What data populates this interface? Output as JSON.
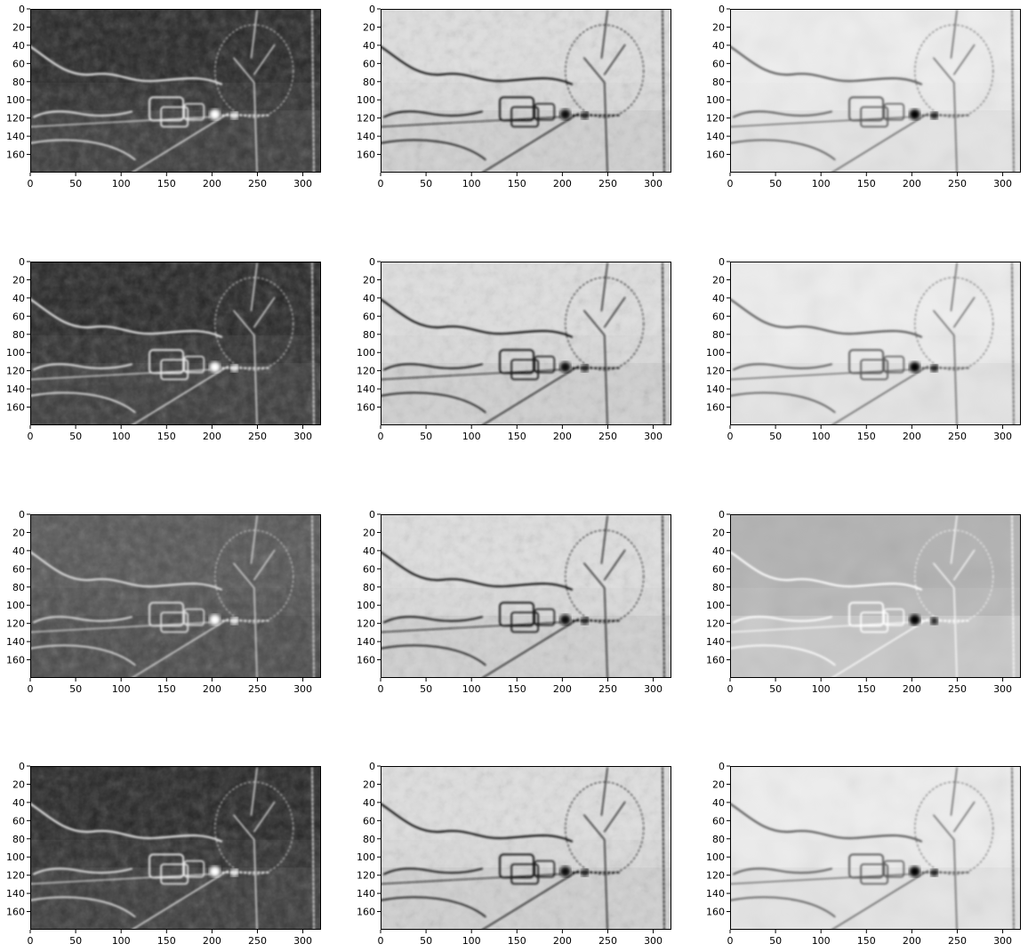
{
  "figure": {
    "rows": 4,
    "cols": 3,
    "colormap": "gray",
    "colors": {
      "background": "#ffffff",
      "frame": "#000000"
    }
  },
  "chart_data": [
    {
      "type": "heatmap",
      "row": 0,
      "col": 0,
      "tone": "dark-edges",
      "xlim": [
        0,
        320
      ],
      "ylim": [
        180,
        0
      ],
      "xticks": [
        0,
        50,
        100,
        150,
        200,
        250,
        300
      ],
      "yticks": [
        0,
        20,
        40,
        60,
        80,
        100,
        120,
        140,
        160
      ],
      "xtick_labels": [
        "0",
        "50",
        "100",
        "150",
        "200",
        "250",
        "300"
      ],
      "ytick_labels": [
        "0",
        "20",
        "40",
        "60",
        "80",
        "100",
        "120",
        "140",
        "160"
      ]
    },
    {
      "type": "heatmap",
      "row": 0,
      "col": 1,
      "tone": "light-inverted",
      "xlim": [
        0,
        320
      ],
      "ylim": [
        180,
        0
      ],
      "xticks": [
        0,
        50,
        100,
        150,
        200,
        250,
        300
      ],
      "yticks": [
        0,
        20,
        40,
        60,
        80,
        100,
        120,
        140,
        160
      ],
      "xtick_labels": [
        "0",
        "50",
        "100",
        "150",
        "200",
        "250",
        "300"
      ],
      "ytick_labels": [
        "0",
        "20",
        "40",
        "60",
        "80",
        "100",
        "120",
        "140",
        "160"
      ]
    },
    {
      "type": "heatmap",
      "row": 0,
      "col": 2,
      "tone": "very-light",
      "xlim": [
        0,
        320
      ],
      "ylim": [
        180,
        0
      ],
      "xticks": [
        0,
        50,
        100,
        150,
        200,
        250,
        300
      ],
      "yticks": [
        0,
        20,
        40,
        60,
        80,
        100,
        120,
        140,
        160
      ],
      "xtick_labels": [
        "0",
        "50",
        "100",
        "150",
        "200",
        "250",
        "300"
      ],
      "ytick_labels": [
        "0",
        "20",
        "40",
        "60",
        "80",
        "100",
        "120",
        "140",
        "160"
      ]
    },
    {
      "type": "heatmap",
      "row": 1,
      "col": 0,
      "tone": "dark-edges",
      "xlim": [
        0,
        320
      ],
      "ylim": [
        180,
        0
      ],
      "xticks": [
        0,
        50,
        100,
        150,
        200,
        250,
        300
      ],
      "yticks": [
        0,
        20,
        40,
        60,
        80,
        100,
        120,
        140,
        160
      ],
      "xtick_labels": [
        "0",
        "50",
        "100",
        "150",
        "200",
        "250",
        "300"
      ],
      "ytick_labels": [
        "0",
        "20",
        "40",
        "60",
        "80",
        "100",
        "120",
        "140",
        "160"
      ]
    },
    {
      "type": "heatmap",
      "row": 1,
      "col": 1,
      "tone": "light-inverted",
      "xlim": [
        0,
        320
      ],
      "ylim": [
        180,
        0
      ],
      "xticks": [
        0,
        50,
        100,
        150,
        200,
        250,
        300
      ],
      "yticks": [
        0,
        20,
        40,
        60,
        80,
        100,
        120,
        140,
        160
      ],
      "xtick_labels": [
        "0",
        "50",
        "100",
        "150",
        "200",
        "250",
        "300"
      ],
      "ytick_labels": [
        "0",
        "20",
        "40",
        "60",
        "80",
        "100",
        "120",
        "140",
        "160"
      ]
    },
    {
      "type": "heatmap",
      "row": 1,
      "col": 2,
      "tone": "very-light",
      "xlim": [
        0,
        320
      ],
      "ylim": [
        180,
        0
      ],
      "xticks": [
        0,
        50,
        100,
        150,
        200,
        250,
        300
      ],
      "yticks": [
        0,
        20,
        40,
        60,
        80,
        100,
        120,
        140,
        160
      ],
      "xtick_labels": [
        "0",
        "50",
        "100",
        "150",
        "200",
        "250",
        "300"
      ],
      "ytick_labels": [
        "0",
        "20",
        "40",
        "60",
        "80",
        "100",
        "120",
        "140",
        "160"
      ]
    },
    {
      "type": "heatmap",
      "row": 2,
      "col": 0,
      "tone": "mid-gray",
      "xlim": [
        0,
        320
      ],
      "ylim": [
        180,
        0
      ],
      "xticks": [
        0,
        50,
        100,
        150,
        200,
        250,
        300
      ],
      "yticks": [
        0,
        20,
        40,
        60,
        80,
        100,
        120,
        140,
        160
      ],
      "xtick_labels": [
        "0",
        "50",
        "100",
        "150",
        "200",
        "250",
        "300"
      ],
      "ytick_labels": [
        "0",
        "20",
        "40",
        "60",
        "80",
        "100",
        "120",
        "140",
        "160"
      ]
    },
    {
      "type": "heatmap",
      "row": 2,
      "col": 1,
      "tone": "light-inverted",
      "xlim": [
        0,
        320
      ],
      "ylim": [
        180,
        0
      ],
      "xticks": [
        0,
        50,
        100,
        150,
        200,
        250,
        300
      ],
      "yticks": [
        0,
        20,
        40,
        60,
        80,
        100,
        120,
        140,
        160
      ],
      "xtick_labels": [
        "0",
        "50",
        "100",
        "150",
        "200",
        "250",
        "300"
      ],
      "ytick_labels": [
        "0",
        "20",
        "40",
        "60",
        "80",
        "100",
        "120",
        "140",
        "160"
      ]
    },
    {
      "type": "heatmap",
      "row": 2,
      "col": 2,
      "tone": "mid-light",
      "xlim": [
        0,
        320
      ],
      "ylim": [
        180,
        0
      ],
      "xticks": [
        0,
        50,
        100,
        150,
        200,
        250,
        300
      ],
      "yticks": [
        0,
        20,
        40,
        60,
        80,
        100,
        120,
        140,
        160
      ],
      "xtick_labels": [
        "0",
        "50",
        "100",
        "150",
        "200",
        "250",
        "300"
      ],
      "ytick_labels": [
        "0",
        "20",
        "40",
        "60",
        "80",
        "100",
        "120",
        "140",
        "160"
      ]
    },
    {
      "type": "heatmap",
      "row": 3,
      "col": 0,
      "tone": "dark-edges",
      "xlim": [
        0,
        320
      ],
      "ylim": [
        180,
        0
      ],
      "xticks": [
        0,
        50,
        100,
        150,
        200,
        250,
        300
      ],
      "yticks": [
        0,
        20,
        40,
        60,
        80,
        100,
        120,
        140,
        160
      ],
      "xtick_labels": [
        "0",
        "50",
        "100",
        "150",
        "200",
        "250",
        "300"
      ],
      "ytick_labels": [
        "0",
        "20",
        "40",
        "60",
        "80",
        "100",
        "120",
        "140",
        "160"
      ]
    },
    {
      "type": "heatmap",
      "row": 3,
      "col": 1,
      "tone": "light-inverted",
      "xlim": [
        0,
        320
      ],
      "ylim": [
        180,
        0
      ],
      "xticks": [
        0,
        50,
        100,
        150,
        200,
        250,
        300
      ],
      "yticks": [
        0,
        20,
        40,
        60,
        80,
        100,
        120,
        140,
        160
      ],
      "xtick_labels": [
        "0",
        "50",
        "100",
        "150",
        "200",
        "250",
        "300"
      ],
      "ytick_labels": [
        "0",
        "20",
        "40",
        "60",
        "80",
        "100",
        "120",
        "140",
        "160"
      ]
    },
    {
      "type": "heatmap",
      "row": 3,
      "col": 2,
      "tone": "very-light",
      "xlim": [
        0,
        320
      ],
      "ylim": [
        180,
        0
      ],
      "xticks": [
        0,
        50,
        100,
        150,
        200,
        250,
        300
      ],
      "yticks": [
        0,
        20,
        40,
        60,
        80,
        100,
        120,
        140,
        160
      ],
      "xtick_labels": [
        "0",
        "50",
        "100",
        "150",
        "200",
        "250",
        "300"
      ],
      "ytick_labels": [
        "0",
        "20",
        "40",
        "60",
        "80",
        "100",
        "120",
        "140",
        "160"
      ]
    }
  ]
}
